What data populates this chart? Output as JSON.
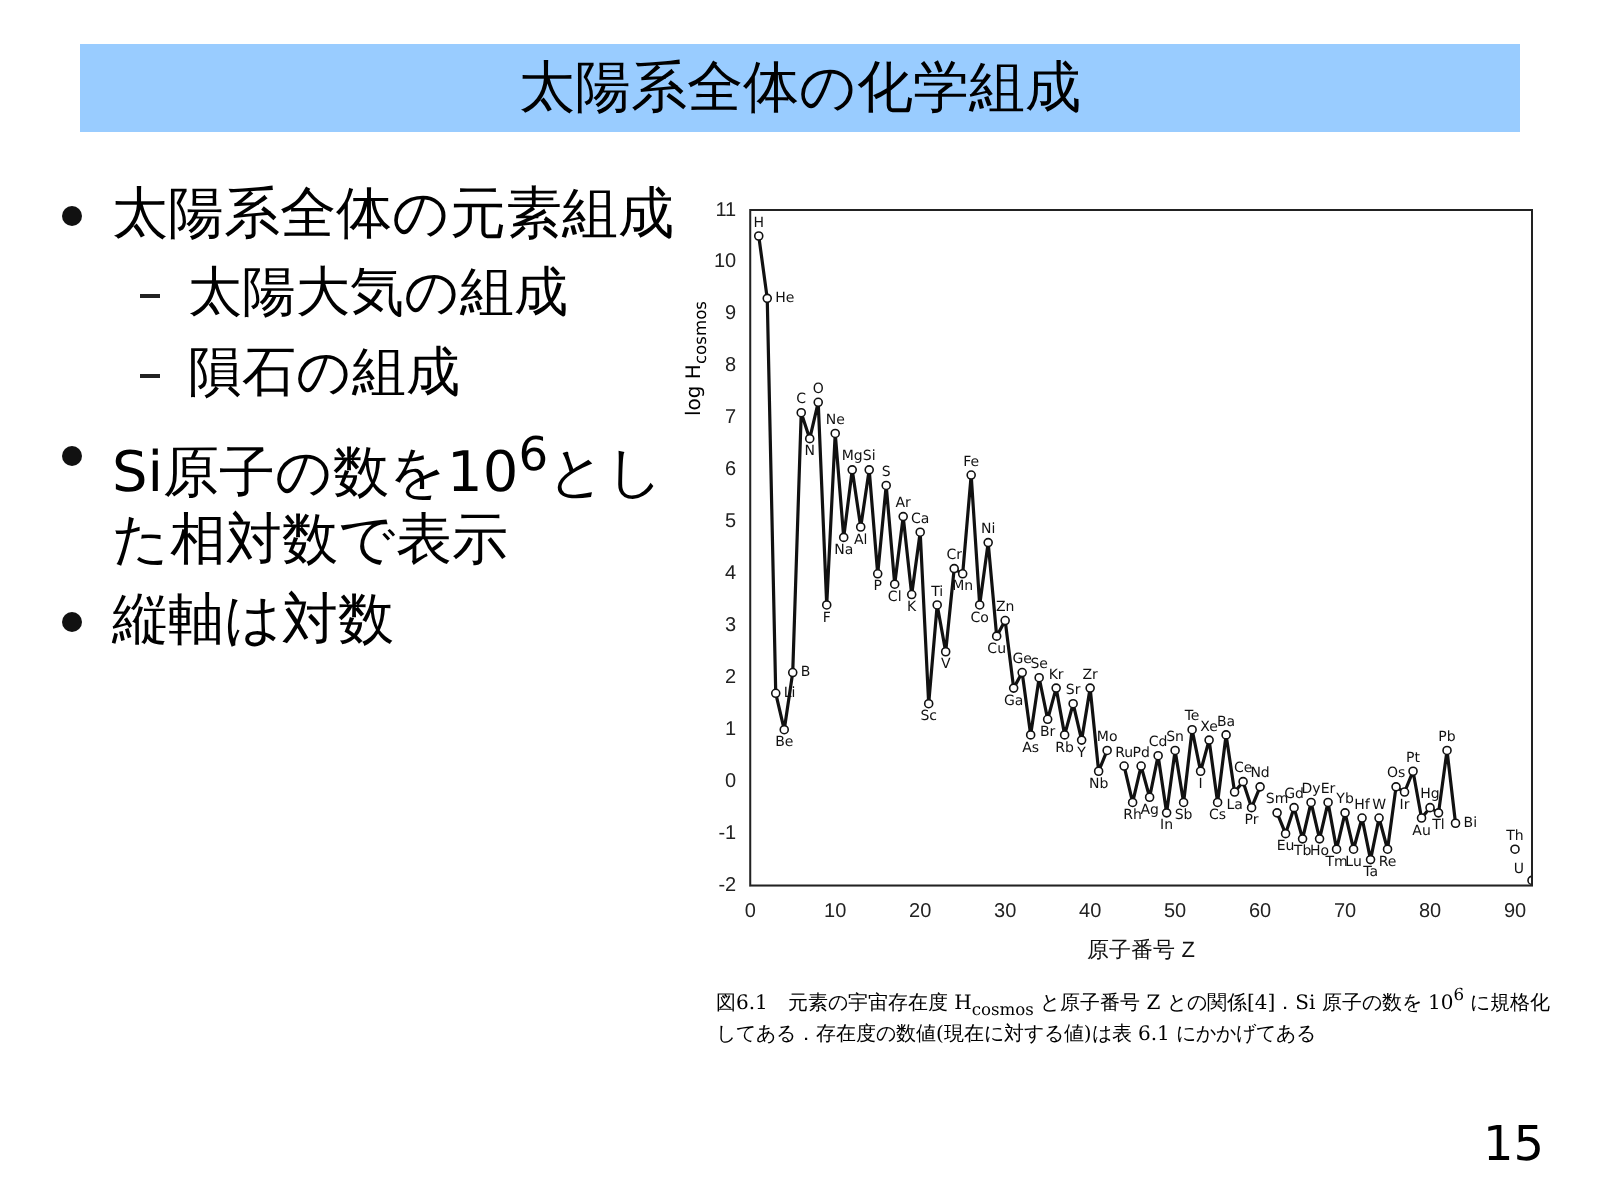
{
  "chart_data": {
    "type": "line",
    "title": "太陽系全体の化学組成",
    "xlabel": "原子番号 Z",
    "ylabel": "log H$_{cosmos}$",
    "x": [
      1,
      2,
      3,
      4,
      5,
      6,
      7,
      8,
      9,
      10,
      11,
      12,
      13,
      14,
      15,
      16,
      17,
      18,
      19,
      20,
      21,
      22,
      23,
      24,
      25,
      26,
      27,
      28,
      29,
      30,
      31,
      32,
      33,
      34,
      35,
      36,
      37,
      38,
      39,
      40,
      41,
      42,
      43,
      44,
      45,
      46,
      47,
      48,
      49,
      50,
      51,
      52,
      53,
      54,
      55,
      56,
      57,
      58,
      59,
      60,
      61,
      62,
      63,
      64,
      65,
      66,
      67,
      68,
      69,
      70,
      71,
      72,
      73,
      74,
      75,
      76,
      77,
      78,
      79,
      80,
      81,
      82,
      83,
      84,
      89,
      90,
      91,
      92
    ],
    "series": [
      {
        "color": "#111111",
        "values": [
          10.5,
          9.3,
          1.7,
          1.0,
          2.1,
          7.1,
          6.6,
          7.3,
          3.4,
          6.7,
          4.7,
          6.0,
          4.9,
          6.0,
          4.0,
          5.7,
          3.8,
          5.1,
          3.6,
          4.8,
          1.5,
          3.4,
          2.5,
          4.1,
          4.0,
          5.9,
          3.4,
          4.6,
          2.8,
          3.1,
          1.8,
          2.1,
          0.9,
          2.0,
          1.2,
          1.8,
          0.9,
          1.5,
          0.8,
          1.8,
          0.2,
          0.6,
          null,
          0.3,
          -0.4,
          0.3,
          -0.3,
          0.5,
          -0.6,
          0.6,
          -0.4,
          1.0,
          0.2,
          0.8,
          -0.4,
          0.9,
          -0.2,
          0.0,
          -0.5,
          -0.1,
          null,
          -0.6,
          -1.0,
          -0.5,
          -1.1,
          -0.4,
          -1.1,
          -0.4,
          -1.3,
          -0.6,
          -1.3,
          -0.7,
          -1.5,
          -0.7,
          -1.3,
          -0.1,
          -0.2,
          0.2,
          -0.7,
          -0.5,
          -0.6,
          0.6,
          -0.8,
          null,
          null,
          -1.3,
          null,
          -1.9
        ]
      }
    ],
    "xlim": [
      0,
      92
    ],
    "xticks": [
      0,
      10,
      20,
      30,
      40,
      50,
      60,
      70,
      80,
      90
    ],
    "ylim": [
      -2,
      11
    ],
    "yticks": [
      -2,
      -1,
      0,
      1,
      2,
      3,
      4,
      5,
      6,
      7,
      8,
      9,
      10,
      11
    ],
    "grid": false,
    "legend": false,
    "marker": "circle",
    "line_style": "solid",
    "annotations": [
      "太陽系全体の元素組成",
      "太陽大気の組成",
      "隕石の組成",
      "Si原子の数を10$^{6}$とした相対数で表示",
      "縦軸は対数",
      "図6.1　元素の宇宙存在度 H$_{cosmos}$ と原子番号 Z との関係[4]．Si 原子の数を 10$^{6}$ に規格化してある．存在度の数値(現在に対する値)は表 6.1 にかかげてある",
      "15",
      {
        "text": "H",
        "x": 1,
        "y": 10.5
      },
      {
        "text": "He",
        "x": 2,
        "y": 9.3
      },
      {
        "text": "Li",
        "x": 3,
        "y": 1.7
      },
      {
        "text": "Be",
        "x": 4,
        "y": 1.0
      },
      {
        "text": "B",
        "x": 5,
        "y": 2.1
      },
      {
        "text": "C",
        "x": 6,
        "y": 7.1
      },
      {
        "text": "N",
        "x": 7,
        "y": 6.6
      },
      {
        "text": "O",
        "x": 8,
        "y": 7.3
      },
      {
        "text": "F",
        "x": 9,
        "y": 3.4
      },
      {
        "text": "Ne",
        "x": 10,
        "y": 6.7
      },
      {
        "text": "Na",
        "x": 11,
        "y": 4.7
      },
      {
        "text": "Mg",
        "x": 12,
        "y": 6.0
      },
      {
        "text": "Al",
        "x": 13,
        "y": 4.9
      },
      {
        "text": "Si",
        "x": 14,
        "y": 6.0
      },
      {
        "text": "P",
        "x": 15,
        "y": 4.0
      },
      {
        "text": "S",
        "x": 16,
        "y": 5.7
      },
      {
        "text": "Cl",
        "x": 17,
        "y": 3.8
      },
      {
        "text": "Ar",
        "x": 18,
        "y": 5.1
      },
      {
        "text": "K",
        "x": 19,
        "y": 3.6
      },
      {
        "text": "Ca",
        "x": 20,
        "y": 4.8
      },
      {
        "text": "Sc",
        "x": 21,
        "y": 1.5
      },
      {
        "text": "Ti",
        "x": 22,
        "y": 3.4
      },
      {
        "text": "V",
        "x": 23,
        "y": 2.5
      },
      {
        "text": "Cr",
        "x": 24,
        "y": 4.1
      },
      {
        "text": "Mn",
        "x": 25,
        "y": 4.0
      },
      {
        "text": "Fe",
        "x": 26,
        "y": 5.9
      },
      {
        "text": "Co",
        "x": 27,
        "y": 3.4
      },
      {
        "text": "Ni",
        "x": 28,
        "y": 4.6
      },
      {
        "text": "Cu",
        "x": 29,
        "y": 2.8
      },
      {
        "text": "Zn",
        "x": 30,
        "y": 3.1
      },
      {
        "text": "Ga",
        "x": 31,
        "y": 1.8
      },
      {
        "text": "Ge",
        "x": 32,
        "y": 2.1
      },
      {
        "text": "As",
        "x": 33,
        "y": 0.9
      },
      {
        "text": "Se",
        "x": 34,
        "y": 2.0
      },
      {
        "text": "Br",
        "x": 35,
        "y": 1.2
      },
      {
        "text": "Kr",
        "x": 36,
        "y": 1.8
      },
      {
        "text": "Rb",
        "x": 37,
        "y": 0.9
      },
      {
        "text": "Sr",
        "x": 38,
        "y": 1.5
      },
      {
        "text": "Y",
        "x": 39,
        "y": 0.8
      },
      {
        "text": "Zr",
        "x": 40,
        "y": 1.8
      },
      {
        "text": "Nb",
        "x": 41,
        "y": 0.2
      },
      {
        "text": "Mo",
        "x": 42,
        "y": 0.6
      },
      {
        "text": "Ru",
        "x": 44,
        "y": 0.3
      },
      {
        "text": "Rh",
        "x": 45,
        "y": -0.4
      },
      {
        "text": "Pd",
        "x": 46,
        "y": 0.3
      },
      {
        "text": "Ag",
        "x": 47,
        "y": -0.3
      },
      {
        "text": "Cd",
        "x": 48,
        "y": 0.5
      },
      {
        "text": "In",
        "x": 49,
        "y": -0.6
      },
      {
        "text": "Sn",
        "x": 50,
        "y": 0.6
      },
      {
        "text": "Sb",
        "x": 51,
        "y": -0.4
      },
      {
        "text": "Te",
        "x": 52,
        "y": 1.0
      },
      {
        "text": "I",
        "x": 53,
        "y": 0.2
      },
      {
        "text": "Xe",
        "x": 54,
        "y": 0.8
      },
      {
        "text": "Cs",
        "x": 55,
        "y": -0.4
      },
      {
        "text": "Ba",
        "x": 56,
        "y": 0.9
      },
      {
        "text": "La",
        "x": 57,
        "y": -0.2
      },
      {
        "text": "Ce",
        "x": 58,
        "y": 0.0
      },
      {
        "text": "Pr",
        "x": 59,
        "y": -0.5
      },
      {
        "text": "Nd",
        "x": 60,
        "y": -0.1
      },
      {
        "text": "Sm",
        "x": 62,
        "y": -0.6
      },
      {
        "text": "Eu",
        "x": 63,
        "y": -1.0
      },
      {
        "text": "Gd",
        "x": 64,
        "y": -0.5
      },
      {
        "text": "Tb",
        "x": 65,
        "y": -1.1
      },
      {
        "text": "Dy",
        "x": 66,
        "y": -0.4
      },
      {
        "text": "Ho",
        "x": 67,
        "y": -1.1
      },
      {
        "text": "Er",
        "x": 68,
        "y": -0.4
      },
      {
        "text": "Tm",
        "x": 69,
        "y": -1.3
      },
      {
        "text": "Yb",
        "x": 70,
        "y": -0.6
      },
      {
        "text": "Lu",
        "x": 71,
        "y": -1.3
      },
      {
        "text": "Hf",
        "x": 72,
        "y": -0.7
      },
      {
        "text": "Ta",
        "x": 73,
        "y": -1.5
      },
      {
        "text": "W",
        "x": 74,
        "y": -0.7
      },
      {
        "text": "Re",
        "x": 75,
        "y": -1.3
      },
      {
        "text": "Os",
        "x": 76,
        "y": -0.1
      },
      {
        "text": "Ir",
        "x": 77,
        "y": -0.2
      },
      {
        "text": "Pt",
        "x": 78,
        "y": 0.2
      },
      {
        "text": "Au",
        "x": 79,
        "y": -0.7
      },
      {
        "text": "Hg",
        "x": 80,
        "y": -0.5
      },
      {
        "text": "Tl",
        "x": 81,
        "y": -0.6
      },
      {
        "text": "Pb",
        "x": 82,
        "y": 0.6
      },
      {
        "text": "Bi",
        "x": 83,
        "y": -0.8
      },
      {
        "text": "Th",
        "x": 90,
        "y": -1.3
      },
      {
        "text": "U",
        "x": 92,
        "y": -1.9
      }
    ]
  }
}
